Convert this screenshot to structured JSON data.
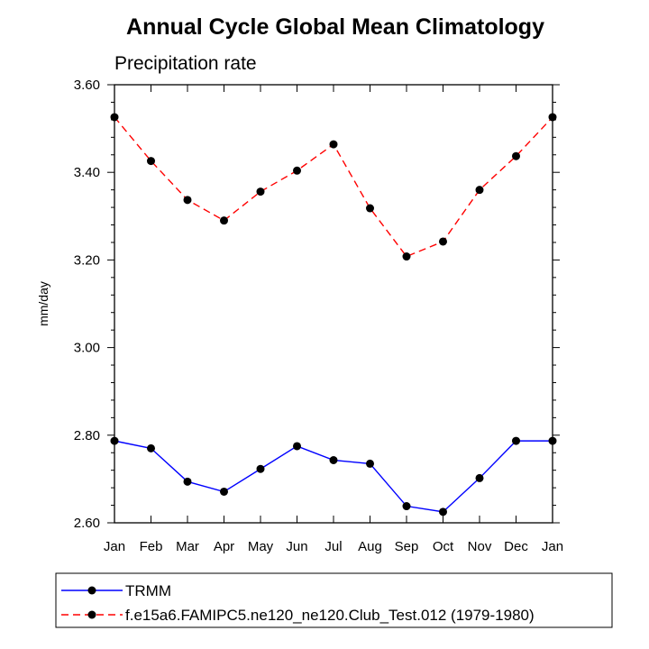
{
  "chart_data": {
    "type": "line",
    "title": "Annual Cycle Global Mean Climatology",
    "subtitle": "Precipitation rate",
    "xlabel": "",
    "ylabel": "mm/day",
    "categories": [
      "Jan",
      "Feb",
      "Mar",
      "Apr",
      "May",
      "Jun",
      "Jul",
      "Aug",
      "Sep",
      "Oct",
      "Nov",
      "Dec",
      "Jan"
    ],
    "ylim": [
      2.6,
      3.6
    ],
    "yticks": [
      "2.60",
      "2.80",
      "3.00",
      "3.20",
      "3.40",
      "3.60"
    ],
    "ytick_values": [
      2.6,
      2.8,
      3.0,
      3.2,
      3.4,
      3.6
    ],
    "grid": false,
    "legend_position": "bottom",
    "series": [
      {
        "name": "TRMM",
        "color": "#0000ff",
        "line_style": "solid",
        "marker": "filled-circle",
        "values": [
          2.787,
          2.77,
          2.694,
          2.671,
          2.723,
          2.775,
          2.743,
          2.735,
          2.638,
          2.625,
          2.702,
          2.787,
          2.787
        ]
      },
      {
        "name": "f.e15a6.FAMIPC5.ne120_ne120.Club_Test.012 (1979-1980)",
        "color": "#ff0000",
        "line_style": "dashed",
        "marker": "filled-circle",
        "values": [
          3.526,
          3.426,
          3.337,
          3.29,
          3.356,
          3.404,
          3.464,
          3.318,
          3.208,
          3.242,
          3.36,
          3.437,
          3.526
        ]
      }
    ]
  }
}
